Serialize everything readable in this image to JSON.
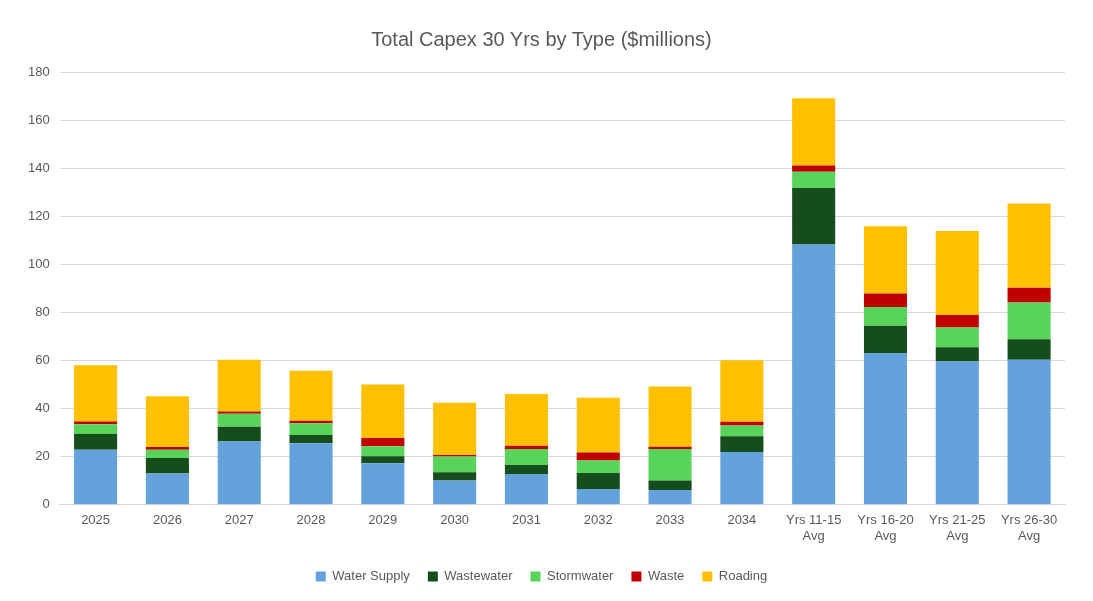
{
  "chart_data": {
    "type": "bar",
    "title": "Total Capex 30 Yrs by Type ($millions)",
    "stacked": true,
    "grid": "y",
    "legend": "bottom",
    "categories": [
      "2025",
      "2026",
      "2027",
      "2028",
      "2029",
      "2030",
      "2031",
      "2032",
      "2033",
      "2034",
      "Yrs 11-15 Avg",
      "Yrs 16-20 Avg",
      "Yrs 21-25 Avg",
      "Yrs 26-30 Avg"
    ],
    "ylim": [
      0,
      180
    ],
    "yticks": [
      0,
      20,
      40,
      60,
      80,
      100,
      120,
      140,
      160,
      180
    ],
    "series": [
      {
        "name": "Water Supply",
        "color": "#64a2dc",
        "values": [
          22.9,
          13.0,
          26.3,
          25.6,
          17.3,
          10.1,
          12.8,
          6.6,
          6.2,
          22.0,
          108.3,
          63.1,
          59.6,
          60.3
        ]
      },
      {
        "name": "Wastewater",
        "color": "#154e1c",
        "values": [
          6.5,
          6.5,
          6.2,
          3.4,
          2.9,
          3.4,
          3.8,
          6.6,
          3.9,
          6.5,
          23.5,
          11.4,
          5.9,
          8.6
        ]
      },
      {
        "name": "Stormwater",
        "color": "#58d45a",
        "values": [
          4.1,
          3.4,
          5.4,
          4.9,
          4.1,
          6.6,
          6.6,
          5.2,
          13.1,
          4.5,
          6.7,
          7.8,
          8.2,
          15.2
        ]
      },
      {
        "name": "Waste",
        "color": "#c00000",
        "values": [
          1.1,
          1.1,
          0.9,
          1.1,
          3.5,
          0.6,
          1.4,
          3.4,
          0.9,
          1.5,
          2.6,
          5.6,
          5.2,
          6.2
        ]
      },
      {
        "name": "Roading",
        "color": "#ffc000",
        "values": [
          23.4,
          21.1,
          21.5,
          20.8,
          22.2,
          21.7,
          21.5,
          22.7,
          25.1,
          25.6,
          28.0,
          28.0,
          35.0,
          35.0
        ]
      }
    ]
  }
}
